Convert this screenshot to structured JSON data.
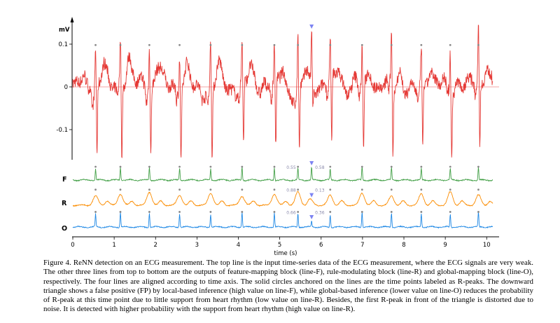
{
  "chart_data": {
    "type": "line",
    "xlabel": "time (s)",
    "xlim": [
      0,
      10.3
    ],
    "xticks": [
      0,
      1,
      2,
      3,
      4,
      5,
      6,
      7,
      8,
      9,
      10
    ],
    "ecg": {
      "ylabel": "mV",
      "ylim": [
        -0.17,
        0.15
      ],
      "yticks": [
        {
          "value": 0.1,
          "label": "0.1"
        },
        {
          "value": 0,
          "label": "0"
        },
        {
          "value": -0.1,
          "label": "-0.1"
        }
      ],
      "color": "#e53935",
      "zero_line": true
    },
    "r_peaks_s": [
      0.55,
      1.15,
      1.85,
      2.58,
      3.33,
      4.09,
      4.87,
      5.44,
      6.22,
      6.99,
      7.7,
      8.42,
      9.12,
      9.8
    ],
    "false_positive_s": 5.77,
    "series": [
      {
        "name": "F",
        "color": "#43a047",
        "annotations": [
          {
            "time": 5.44,
            "label": "0.55"
          },
          {
            "time": 5.77,
            "label": "0.58"
          }
        ]
      },
      {
        "name": "R",
        "color": "#fb8c00",
        "annotations": [
          {
            "time": 5.44,
            "label": "0.88"
          },
          {
            "time": 5.77,
            "label": "0.13"
          }
        ]
      },
      {
        "name": "O",
        "color": "#1e88e5",
        "annotations": [
          {
            "time": 5.44,
            "label": "0.66"
          },
          {
            "time": 5.77,
            "label": "0.36"
          }
        ]
      }
    ],
    "marker_colors": {
      "peak": "#888888",
      "triangle": "#7c83f2"
    }
  },
  "caption": "Figure 4. ReNN detection on an ECG measurement. The top line is the input time-series data of the ECG measurement, where the ECG signals are very weak. The other three lines from top to bottom are the outputs of feature-mapping block (line-F), rule-modulating block (line-R) and global-mapping block (line-O), respectively. The four lines are aligned according to time axis. The solid circles anchored on the lines are the time points labeled as R-peaks. The downward triangle shows a false positive (FP) by local-based inference (high value on line-F), while global-based inference (lower value on line-O) reduces the probability of R-peak at this time point due to little support from heart rhythm (low value on line-R). Besides, the first R-peak in front of the triangle is distorted due to noise. It is detected with higher probability with the support from heart rhythm (high value on line-R)."
}
